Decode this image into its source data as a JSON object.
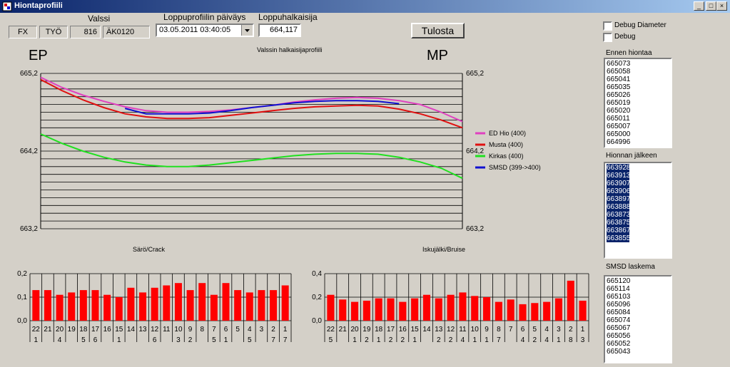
{
  "window": {
    "title": "Hiontaprofiili",
    "btn_min": "_",
    "btn_max": "□",
    "btn_close": "×"
  },
  "header": {
    "valssi_label": "Valssi",
    "fx": "FX",
    "tyo": "TYÖ",
    "num": "816",
    "code": "ÄK0120",
    "date_label": "Loppuprofiilin päiväys",
    "date_value": "03.05.2011  03:40:05",
    "diameter_label": "Loppuhalkaisija",
    "diameter_value": "664,117",
    "print_button": "Tulosta"
  },
  "debug": {
    "diameter_label": "Debug Diameter",
    "debug_label": "Debug"
  },
  "lists": {
    "before": {
      "label": "Ennen hiontaa",
      "items": [
        "665073",
        "665058",
        "665041",
        "665035",
        "665026",
        "665019",
        "665020",
        "665011",
        "665007",
        "665000",
        "664996"
      ]
    },
    "after": {
      "label": "Hionnan jälkeen",
      "items": [
        "663928",
        "663913",
        "663907",
        "663906",
        "663897",
        "663888",
        "663873",
        "663875",
        "663867",
        "663855"
      ]
    },
    "smsd": {
      "label": "SMSD laskema",
      "items": [
        "665120",
        "665114",
        "665103",
        "665096",
        "665084",
        "665074",
        "665067",
        "665056",
        "665052",
        "665043"
      ]
    }
  },
  "colors": {
    "pink": "#e040c0",
    "red": "#e01010",
    "green": "#20e020",
    "blue": "#1010d0",
    "bar": "#ff0000"
  },
  "chart_data": [
    {
      "type": "line",
      "title": "Valssin halkaisijaprofiili",
      "left_label": "EP",
      "right_label": "MP",
      "ylim": [
        663.2,
        665.2
      ],
      "y_ticks": [
        "665,2",
        "664,2",
        "663,2"
      ],
      "grid": true,
      "legend_position": "right",
      "x": [
        0,
        5,
        10,
        15,
        20,
        25,
        30,
        35,
        40,
        45,
        50,
        55,
        60,
        65,
        70,
        75,
        80,
        85,
        90,
        95,
        100
      ],
      "series": [
        {
          "name": "ED Hio (400)",
          "color": "#e040c0",
          "values": [
            665.15,
            665.02,
            664.92,
            664.84,
            664.77,
            664.72,
            664.7,
            664.7,
            664.71,
            664.73,
            664.76,
            664.79,
            664.83,
            664.86,
            664.88,
            664.89,
            664.88,
            664.85,
            664.8,
            664.7,
            664.58
          ]
        },
        {
          "name": "Musta (400)",
          "color": "#e01010",
          "values": [
            665.12,
            664.98,
            664.86,
            664.76,
            664.68,
            664.64,
            664.62,
            664.62,
            664.63,
            664.66,
            664.69,
            664.72,
            664.75,
            664.77,
            664.78,
            664.79,
            664.78,
            664.74,
            664.68,
            664.6,
            664.5
          ]
        },
        {
          "name": "Kirkas (400)",
          "color": "#20e020",
          "values": [
            664.42,
            664.3,
            664.2,
            664.12,
            664.06,
            664.02,
            664.0,
            664.0,
            664.02,
            664.05,
            664.08,
            664.11,
            664.14,
            664.16,
            664.17,
            664.17,
            664.16,
            664.12,
            664.06,
            663.98,
            663.85
          ]
        },
        {
          "name": "SMSD (399->400)",
          "color": "#1010d0",
          "values": [
            null,
            null,
            null,
            null,
            664.75,
            664.68,
            664.68,
            664.68,
            664.69,
            664.72,
            664.76,
            664.79,
            664.82,
            664.84,
            664.85,
            664.85,
            664.84,
            664.81,
            null,
            null,
            null
          ]
        }
      ]
    },
    {
      "type": "bar",
      "title": "Särö/Crack",
      "ylim": [
        0,
        0.2
      ],
      "y_ticks": [
        "0,2",
        "0,1",
        "0,0"
      ],
      "categories": [
        "22",
        "21",
        "20",
        "19",
        "18",
        "17",
        "16",
        "15",
        "14",
        "13",
        "12",
        "11",
        "10",
        "9",
        "8",
        "7",
        "6",
        "5",
        "4",
        "3",
        "2",
        "1"
      ],
      "sublabels": [
        "1",
        "",
        "4",
        "",
        "5",
        "6",
        "",
        "1",
        "",
        "",
        "6",
        "",
        "3",
        "2",
        "",
        "5",
        "1",
        "",
        "5",
        "",
        "7",
        "7"
      ],
      "values": [
        0.13,
        0.13,
        0.11,
        0.12,
        0.13,
        0.13,
        0.11,
        0.1,
        0.14,
        0.12,
        0.14,
        0.15,
        0.16,
        0.13,
        0.16,
        0.11,
        0.16,
        0.13,
        0.12,
        0.13,
        0.13,
        0.15
      ]
    },
    {
      "type": "bar",
      "title": "Iskujälki/Bruise",
      "ylim": [
        0,
        0.4
      ],
      "y_ticks": [
        "0,4",
        "0,2",
        "0,0"
      ],
      "categories": [
        "22",
        "21",
        "20",
        "19",
        "18",
        "17",
        "16",
        "15",
        "14",
        "13",
        "12",
        "11",
        "10",
        "9",
        "8",
        "7",
        "6",
        "5",
        "4",
        "3",
        "2",
        "1"
      ],
      "sublabels": [
        "5",
        "",
        "1",
        "2",
        "1",
        "2",
        "2",
        "1",
        "",
        "2",
        "2",
        "4",
        "1",
        "1",
        "7",
        "",
        "4",
        "2",
        "4",
        "1",
        "8",
        "3"
      ],
      "values": [
        0.22,
        0.18,
        0.16,
        0.17,
        0.19,
        0.19,
        0.16,
        0.19,
        0.22,
        0.19,
        0.22,
        0.24,
        0.21,
        0.2,
        0.16,
        0.18,
        0.14,
        0.15,
        0.16,
        0.19,
        0.34,
        0.17
      ]
    }
  ]
}
